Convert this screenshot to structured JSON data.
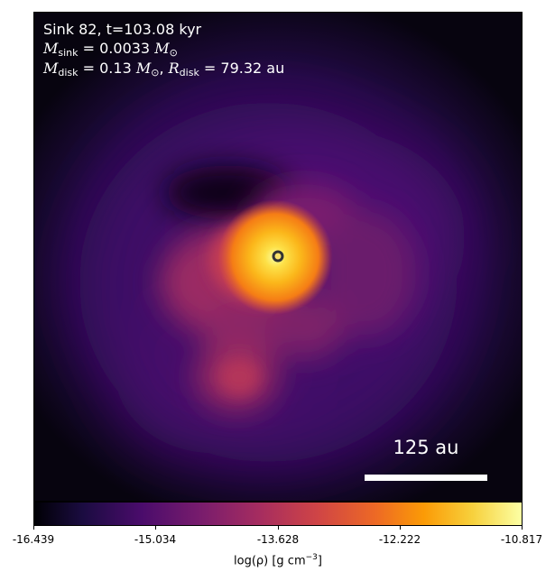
{
  "panel": {
    "title": "Sink 82, t=103.08 kyr",
    "sink_mass": {
      "symbol": "M",
      "subscript": "sink",
      "value": "= 0.0033",
      "unit_symbol": "M",
      "unit_subscript": "⊙"
    },
    "disk": {
      "mass_symbol": "M",
      "mass_subscript": "disk",
      "mass_value": "= 0.13",
      "mass_unit_symbol": "M",
      "mass_unit_subscript": "⊙",
      "separator": ", ",
      "radius_symbol": "R",
      "radius_subscript": "disk",
      "radius_value": "= 79.32 au"
    },
    "scale_bar_label": "125 au"
  },
  "colorbar": {
    "colormap": "inferno",
    "tick_labels": [
      "-16.439",
      "-15.034",
      "-13.628",
      "-12.222",
      "-10.817"
    ],
    "label_main": "log(ρ) [g cm",
    "label_exp": "−3",
    "label_end": "]"
  },
  "colors": {
    "background_dark": "#07040f",
    "purple": "#4a0c6b",
    "magenta": "#a52c60",
    "orange": "#f57d15",
    "yellow": "#fcffa4",
    "sink_marker": "#333333"
  }
}
